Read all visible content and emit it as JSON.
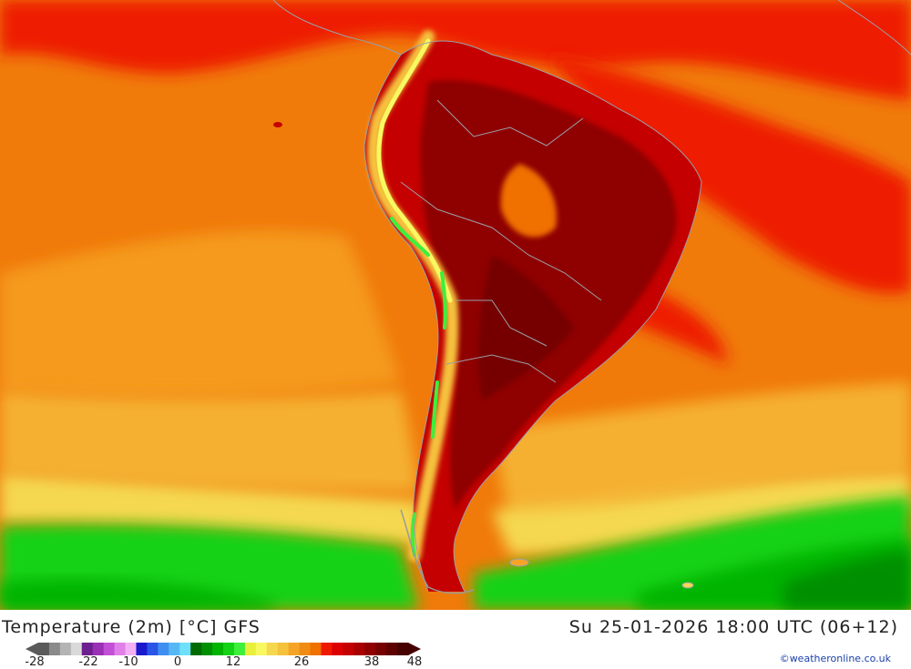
{
  "header": {
    "title": "Temperature (2m) [°C] GFS",
    "datetime": "Su 25-01-2026 18:00 UTC (06+12)"
  },
  "legend": {
    "tick_labels": [
      "-28",
      "-22",
      "-10",
      "0",
      "12",
      "26",
      "38",
      "48"
    ],
    "colors": [
      "#5a5a5a",
      "#8a8a8a",
      "#b4b4b4",
      "#d9d9d9",
      "#6e1f8f",
      "#9a30b4",
      "#c24fd6",
      "#e07fe8",
      "#f3b0f5",
      "#1a1acc",
      "#2a55e6",
      "#3f8ff0",
      "#55b8f5",
      "#6ee0fa",
      "#006b00",
      "#008f00",
      "#00b400",
      "#14d214",
      "#3cf03c",
      "#e8f03c",
      "#f8f860",
      "#f5d850",
      "#f5c23c",
      "#f5a428",
      "#f08c14",
      "#f07000",
      "#ee1a00",
      "#dd0000",
      "#c40000",
      "#aa0000",
      "#8f0000",
      "#760000",
      "#5e0000",
      "#460000"
    ]
  },
  "credit": "©weatheronline.co.uk"
}
